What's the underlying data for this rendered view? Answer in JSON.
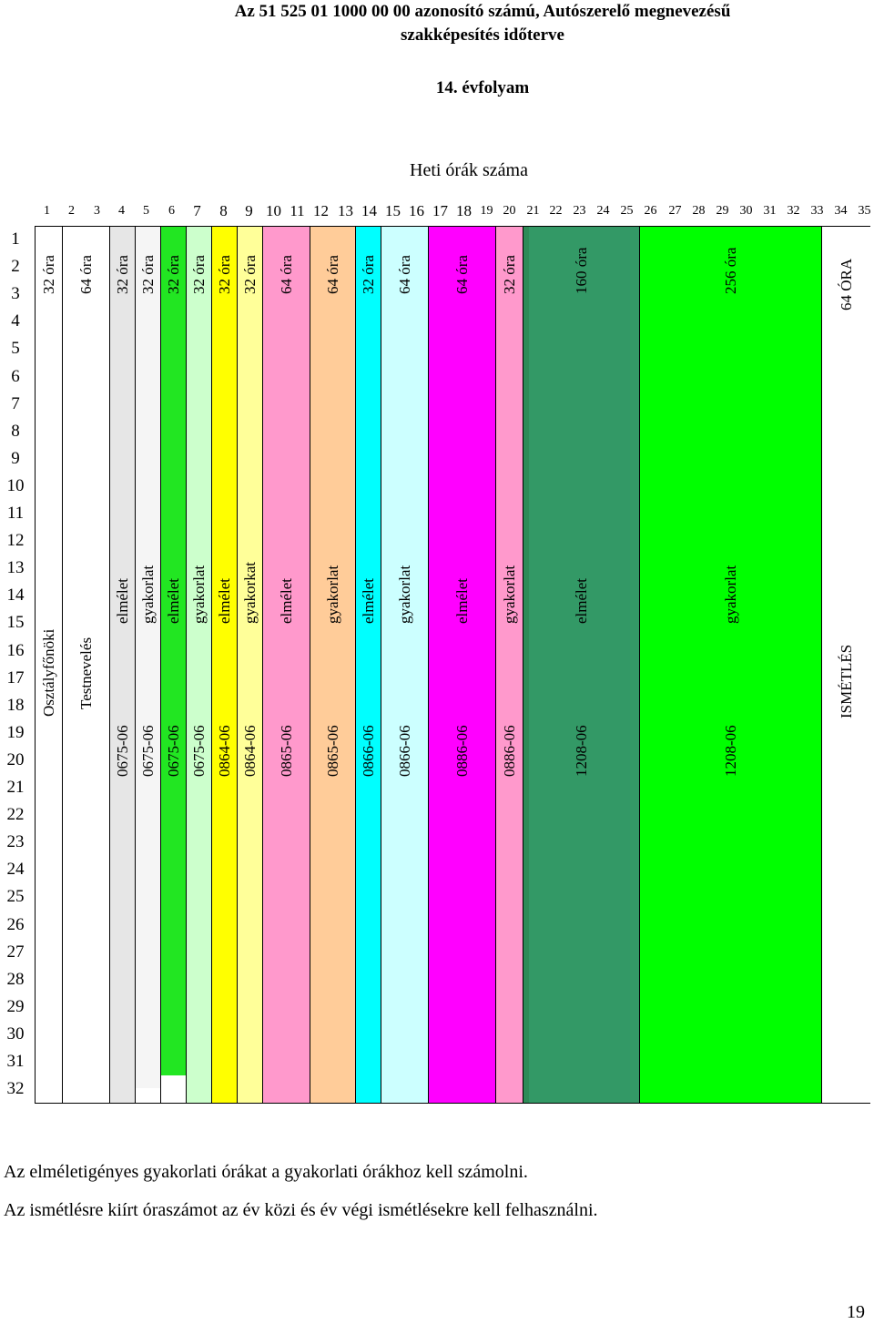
{
  "header": {
    "title_line1": "Az 51 525 01 1000 00 00 azonosító számú, Autószerelő    megnevezésű",
    "title_line2": "szakképesítés időterve",
    "year": "14. évfolyam",
    "weekly_hours_label": "Heti órák száma"
  },
  "column_numbers": [
    "1",
    "2",
    "3",
    "4",
    "5",
    "6",
    "7",
    "8",
    "9",
    "10",
    "11",
    "12",
    "13",
    "14",
    "15",
    "16",
    "17",
    "18",
    "19",
    "20",
    "21",
    "22",
    "23",
    "24",
    "25",
    "26",
    "27",
    "28",
    "29",
    "30",
    "31",
    "32",
    "33",
    "34",
    "35"
  ],
  "row_numbers": [
    "1",
    "2",
    "3",
    "4",
    "5",
    "6",
    "7",
    "8",
    "9",
    "10",
    "11",
    "12",
    "13",
    "14",
    "15",
    "16",
    "17",
    "18",
    "19",
    "20",
    "21",
    "22",
    "23",
    "24",
    "25",
    "26",
    "27",
    "28",
    "29",
    "30",
    "31",
    "32"
  ],
  "blocks": [
    {
      "hours": "32 óra",
      "type": "",
      "code": "",
      "subject": "Osztályfőnöki",
      "color": "#ffffff"
    },
    {
      "hours": "64 óra",
      "type": "",
      "code": "",
      "subject": "Testnevelés",
      "color": "#ffffff"
    },
    {
      "hours": "32 óra",
      "type": "elmélet",
      "code": "0675-06",
      "subject": "",
      "color": "#e6e6e6"
    },
    {
      "hours": "32 óra",
      "type": "gyakorlat",
      "code": "0675-06",
      "subject": "",
      "color": "#f5f5f5"
    },
    {
      "hours": "32 óra",
      "type": "elmélet",
      "code": "0675-06",
      "subject": "",
      "color": "#22e622"
    },
    {
      "hours": "32 óra",
      "type": "gyakorlat",
      "code": "0675-06",
      "subject": "",
      "color": "#ccffcc"
    },
    {
      "hours": "32 óra",
      "type": "elmélet",
      "code": "0864-06",
      "subject": "",
      "color": "#ffff00"
    },
    {
      "hours": "32 óra",
      "type": "gyakorkat",
      "code": "0864-06",
      "subject": "",
      "color": "#ffff99"
    },
    {
      "hours": "64 óra",
      "type": "elmélet",
      "code": "0865-06",
      "subject": "",
      "color": "#ff99cc"
    },
    {
      "hours": "64 óra",
      "type": "gyakorlat",
      "code": "0865-06",
      "subject": "",
      "color": "#ffcc99"
    },
    {
      "hours": "32 óra",
      "type": "elmélet",
      "code": "0866-06",
      "subject": "",
      "color": "#00ffff"
    },
    {
      "hours": "64 óra",
      "type": "gyakorlat",
      "code": "0866-06",
      "subject": "",
      "color": "#ccffff"
    },
    {
      "hours": "64 óra",
      "type": "elmélet",
      "code": "0886-06",
      "subject": "",
      "color": "#ff00ff"
    },
    {
      "hours": "32 óra",
      "type": "gyakorlat",
      "code": "0886-06",
      "subject": "",
      "color": "#ff99cc"
    },
    {
      "hours": "160 óra",
      "type": "elmélet",
      "code": "1208-06",
      "subject": "",
      "color": "#339966"
    },
    {
      "hours": "256 óra",
      "type": "gyakorlat",
      "code": "1208-06",
      "subject": "",
      "color": "#00ff00"
    },
    {
      "hours": "64 ÓRA",
      "type": "",
      "code": "",
      "subject": "ISMÉTLÉS",
      "color": "#ffffff"
    }
  ],
  "footer": {
    "note1": "Az elméletigényes gyakorlati órákat a gyakorlati órákhoz kell számolni.",
    "note2": "Az ismétlésre kiírt óraszámot az év közi és év végi ismétlésekre kell felhasználni."
  },
  "page_number": "19"
}
